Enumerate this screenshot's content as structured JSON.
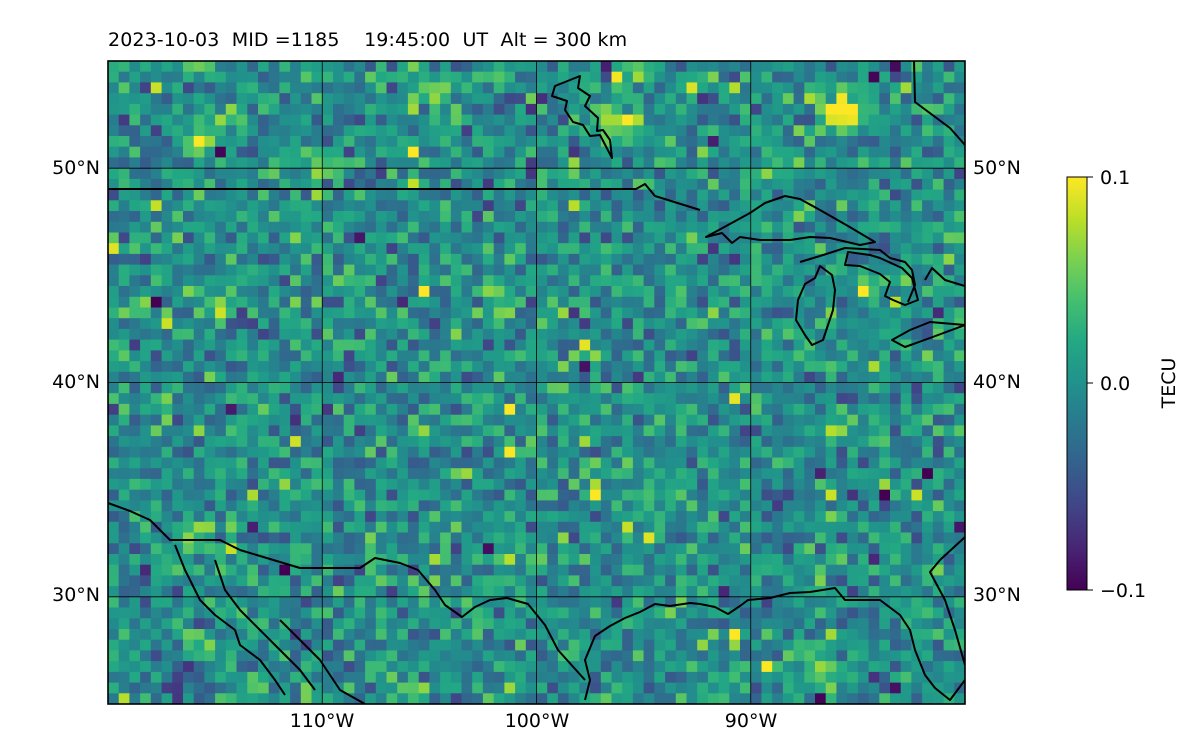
{
  "title": "2023-10-03  MID =1185    19:45:00  UT  Alt = 300 km",
  "map": {
    "lon_range": [
      -120,
      -80
    ],
    "lat_range": [
      25,
      55
    ],
    "cell_deg": 0.5,
    "lat_ticks": [
      {
        "value": 50,
        "label": "50°N"
      },
      {
        "value": 40,
        "label": "40°N"
      },
      {
        "value": 30,
        "label": "30°N"
      }
    ],
    "lon_ticks": [
      {
        "value": -110,
        "label": "110°W"
      },
      {
        "value": -100,
        "label": "100°W"
      },
      {
        "value": -90,
        "label": "90°W"
      }
    ],
    "gridlines": true,
    "coastlines": true,
    "colormap": "viridis",
    "data_description": "differential TEC, mostly near zero with patches toward ±0.1"
  },
  "colorbar": {
    "label": "TECU",
    "min": -0.1,
    "max": 0.1,
    "ticks": [
      {
        "value": 0.1,
        "label": "0.1"
      },
      {
        "value": 0.0,
        "label": "0.0"
      },
      {
        "value": -0.1,
        "label": "−0.1"
      }
    ]
  },
  "colors": {
    "viridis_low": "#440154",
    "viridis_mid": "#21918c",
    "viridis_high": "#fde725",
    "coastline": "#000000"
  }
}
